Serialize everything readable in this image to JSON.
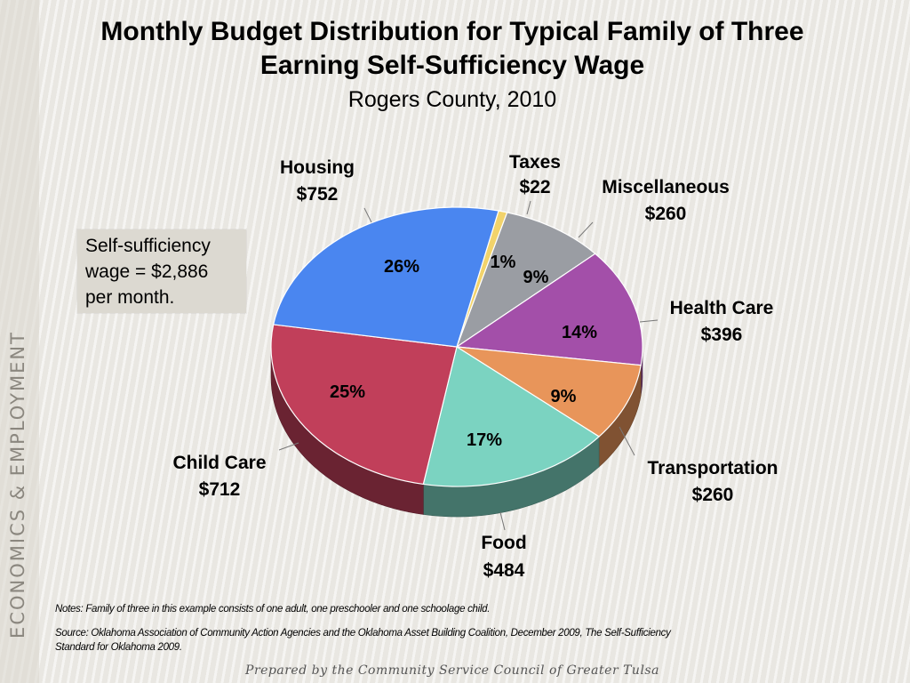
{
  "slide": {
    "title_line1": "Monthly Budget Distribution for Typical Family of Three",
    "title_line2": "Earning Self-Sufficiency Wage",
    "subtitle": "Rogers County, 2010",
    "side_text": "ECONOMICS & EMPLOYMENT",
    "wage_note": [
      "Self-sufficiency",
      "wage = $2,886",
      "per month."
    ],
    "notes": "Notes:  Family of three in this example consists of one adult, one preschooler and one schoolage child.",
    "source_line1": "Source:  Oklahoma Association of Community Action Agencies and the Oklahoma Asset Building Coalition, December 2009, The Self-Sufficiency",
    "source_line2": "Standard for Oklahoma 2009.",
    "footer": "Prepared by the Community Service Council of Greater Tulsa"
  },
  "chart_data": {
    "type": "pie",
    "title": "Monthly Budget Distribution for Typical Family of Three Earning Self-Sufficiency Wage",
    "subtitle": "Rogers County, 2010",
    "total_label": "$2,886",
    "slices": [
      {
        "name": "Taxes",
        "value": 22,
        "value_label": "$22",
        "percent_label": "1%",
        "color": "#f2d36b"
      },
      {
        "name": "Miscellaneous",
        "value": 260,
        "value_label": "$260",
        "percent_label": "9%",
        "color": "#9a9da3"
      },
      {
        "name": "Health Care",
        "value": 396,
        "value_label": "$396",
        "percent_label": "14%",
        "color": "#a34fa9"
      },
      {
        "name": "Transportation",
        "value": 260,
        "value_label": "$260",
        "percent_label": "9%",
        "color": "#e8955a"
      },
      {
        "name": "Food",
        "value": 484,
        "value_label": "$484",
        "percent_label": "17%",
        "color": "#7bd3c1"
      },
      {
        "name": "Child Care",
        "value": 712,
        "value_label": "$712",
        "percent_label": "25%",
        "color": "#c13f5a"
      },
      {
        "name": "Housing",
        "value": 752,
        "value_label": "$752",
        "percent_label": "26%",
        "color": "#4a86f0"
      }
    ]
  }
}
